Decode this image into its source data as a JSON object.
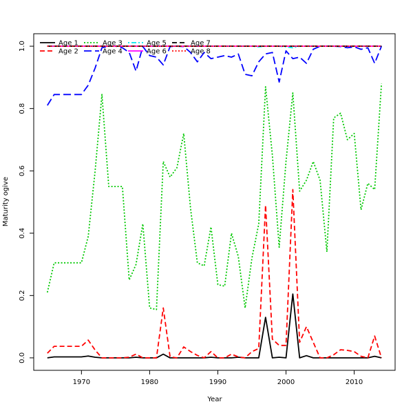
{
  "chart_data": {
    "type": "line",
    "title": "",
    "xlabel": "Year",
    "ylabel": "Maturity ogive",
    "xlim": [
      1963,
      2016
    ],
    "ylim": [
      -0.04,
      1.04
    ],
    "xticks": [
      1970,
      1980,
      1990,
      2000,
      2010
    ],
    "yticks": [
      0.0,
      0.2,
      0.4,
      0.6,
      0.8,
      1.0
    ],
    "xtick_labels": [
      "1970",
      "1980",
      "1990",
      "2000",
      "2010"
    ],
    "ytick_labels": [
      "0.0",
      "0.2",
      "0.4",
      "0.6",
      "0.8",
      "1.0"
    ],
    "legend_position": "top-left",
    "grid": false,
    "x": [
      1965,
      1966,
      1967,
      1968,
      1969,
      1970,
      1971,
      1972,
      1973,
      1974,
      1975,
      1976,
      1977,
      1978,
      1979,
      1980,
      1981,
      1982,
      1983,
      1984,
      1985,
      1986,
      1987,
      1988,
      1989,
      1990,
      1991,
      1992,
      1993,
      1994,
      1995,
      1996,
      1997,
      1998,
      1999,
      2000,
      2001,
      2002,
      2003,
      2004,
      2005,
      2006,
      2007,
      2008,
      2009,
      2010,
      2011,
      2012,
      2013,
      2014
    ],
    "series": [
      {
        "name": "Age 1",
        "color": "#000000",
        "dash": "solid",
        "values": [
          0.0,
          0.003,
          0.003,
          0.003,
          0.003,
          0.003,
          0.006,
          0.002,
          0.0,
          0.0,
          0.0,
          0.0,
          0.0,
          0.002,
          0.0,
          0.0,
          0.0,
          0.012,
          0.0,
          0.0,
          0.0,
          0.0,
          0.0,
          0.0,
          0.002,
          0.0,
          0.0,
          0.0,
          0.002,
          0.0,
          0.0,
          0.0,
          0.13,
          0.0,
          0.002,
          0.0,
          0.205,
          0.0,
          0.007,
          0.0,
          0.0,
          0.0,
          0.0,
          0.0,
          0.0,
          0.0,
          0.0,
          0.0,
          0.005,
          0.0
        ]
      },
      {
        "name": "Age 2",
        "color": "#ff0000",
        "dash": "dashed",
        "values": [
          0.015,
          0.037,
          0.037,
          0.037,
          0.037,
          0.037,
          0.057,
          0.025,
          0.0,
          0.0,
          0.0,
          0.0,
          0.002,
          0.012,
          0.0,
          0.0,
          0.0,
          0.16,
          0.003,
          0.0,
          0.035,
          0.02,
          0.008,
          0.0,
          0.02,
          0.0,
          0.0,
          0.012,
          0.003,
          0.0,
          0.02,
          0.03,
          0.49,
          0.06,
          0.04,
          0.04,
          0.54,
          0.05,
          0.1,
          0.05,
          0.0,
          0.0,
          0.01,
          0.026,
          0.024,
          0.02,
          0.005,
          0.0,
          0.07,
          0.0
        ]
      },
      {
        "name": "Age 3",
        "color": "#00c800",
        "dash": "dotted",
        "values": [
          0.21,
          0.305,
          0.305,
          0.305,
          0.305,
          0.305,
          0.39,
          0.6,
          0.845,
          0.55,
          0.55,
          0.55,
          0.25,
          0.3,
          0.43,
          0.16,
          0.155,
          0.63,
          0.58,
          0.61,
          0.72,
          0.48,
          0.305,
          0.295,
          0.42,
          0.235,
          0.23,
          0.4,
          0.325,
          0.16,
          0.32,
          0.43,
          0.87,
          0.65,
          0.355,
          0.63,
          0.85,
          0.535,
          0.57,
          0.63,
          0.57,
          0.34,
          0.77,
          0.785,
          0.7,
          0.72,
          0.475,
          0.56,
          0.54,
          0.88
        ]
      },
      {
        "name": "Age 4",
        "color": "#0000ff",
        "dash": "longdash",
        "values": [
          0.81,
          0.845,
          0.845,
          0.845,
          0.845,
          0.845,
          0.875,
          0.93,
          0.995,
          1.0,
          1.0,
          0.995,
          0.98,
          0.92,
          0.999,
          0.97,
          0.965,
          0.94,
          0.999,
          1.0,
          0.999,
          0.98,
          0.95,
          0.98,
          0.96,
          0.965,
          0.97,
          0.965,
          0.975,
          0.91,
          0.905,
          0.95,
          0.975,
          0.98,
          0.885,
          0.985,
          0.96,
          0.965,
          0.945,
          0.99,
          1.0,
          1.0,
          1.0,
          0.999,
          0.995,
          0.998,
          0.99,
          0.995,
          0.945,
          1.0
        ]
      },
      {
        "name": "Age 5",
        "color": "#00e5ee",
        "dash": "dotdash",
        "values": [
          1.0,
          1.0,
          1.0,
          1.0,
          1.0,
          1.0,
          1.0,
          1.0,
          1.0,
          1.0,
          1.0,
          1.0,
          1.0,
          1.0,
          1.0,
          1.0,
          1.0,
          1.0,
          1.0,
          1.0,
          1.0,
          1.0,
          1.0,
          1.0,
          1.0,
          1.0,
          1.0,
          1.0,
          1.0,
          1.0,
          1.0,
          0.998,
          1.0,
          1.0,
          1.0,
          0.998,
          0.995,
          1.0,
          1.0,
          1.0,
          1.0,
          1.0,
          1.0,
          1.0,
          1.0,
          1.0,
          1.0,
          1.0,
          1.0,
          1.0
        ]
      },
      {
        "name": "Age 6",
        "color": "#ff00ff",
        "dash": "solid",
        "values": [
          1.0,
          1.0,
          1.0,
          1.0,
          1.0,
          1.0,
          1.0,
          1.0,
          1.0,
          1.0,
          1.0,
          1.0,
          1.0,
          1.0,
          1.0,
          1.0,
          1.0,
          1.0,
          1.0,
          1.0,
          1.0,
          1.0,
          1.0,
          1.0,
          1.0,
          1.0,
          1.0,
          1.0,
          1.0,
          1.0,
          1.0,
          1.0,
          1.0,
          1.0,
          1.0,
          1.0,
          1.0,
          1.0,
          1.0,
          1.0,
          1.0,
          1.0,
          1.0,
          1.0,
          1.0,
          1.0,
          1.0,
          1.0,
          1.0,
          1.0
        ]
      },
      {
        "name": "Age 7",
        "color": "#000000",
        "dash": "dashed",
        "values": [
          1.0,
          1.0,
          1.0,
          1.0,
          1.0,
          1.0,
          1.0,
          1.0,
          1.0,
          1.0,
          1.0,
          1.0,
          1.0,
          1.0,
          1.0,
          1.0,
          1.0,
          1.0,
          1.0,
          1.0,
          1.0,
          1.0,
          1.0,
          1.0,
          1.0,
          1.0,
          1.0,
          1.0,
          1.0,
          1.0,
          1.0,
          1.0,
          1.0,
          1.0,
          1.0,
          1.0,
          1.0,
          1.0,
          1.0,
          1.0,
          1.0,
          1.0,
          1.0,
          1.0,
          1.0,
          1.0,
          1.0,
          1.0,
          1.0,
          1.0
        ]
      },
      {
        "name": "Age 8",
        "color": "#ff0000",
        "dash": "dotted",
        "values": [
          1.0,
          1.0,
          1.0,
          1.0,
          1.0,
          1.0,
          1.0,
          1.0,
          1.0,
          1.0,
          1.0,
          1.0,
          1.0,
          1.0,
          1.0,
          1.0,
          1.0,
          1.0,
          1.0,
          1.0,
          1.0,
          1.0,
          1.0,
          1.0,
          1.0,
          1.0,
          1.0,
          1.0,
          1.0,
          1.0,
          1.0,
          1.0,
          1.0,
          1.0,
          1.0,
          1.0,
          1.0,
          1.0,
          1.0,
          1.0,
          1.0,
          1.0,
          1.0,
          1.0,
          1.0,
          1.0,
          1.0,
          1.0,
          1.0,
          1.0
        ]
      }
    ]
  }
}
